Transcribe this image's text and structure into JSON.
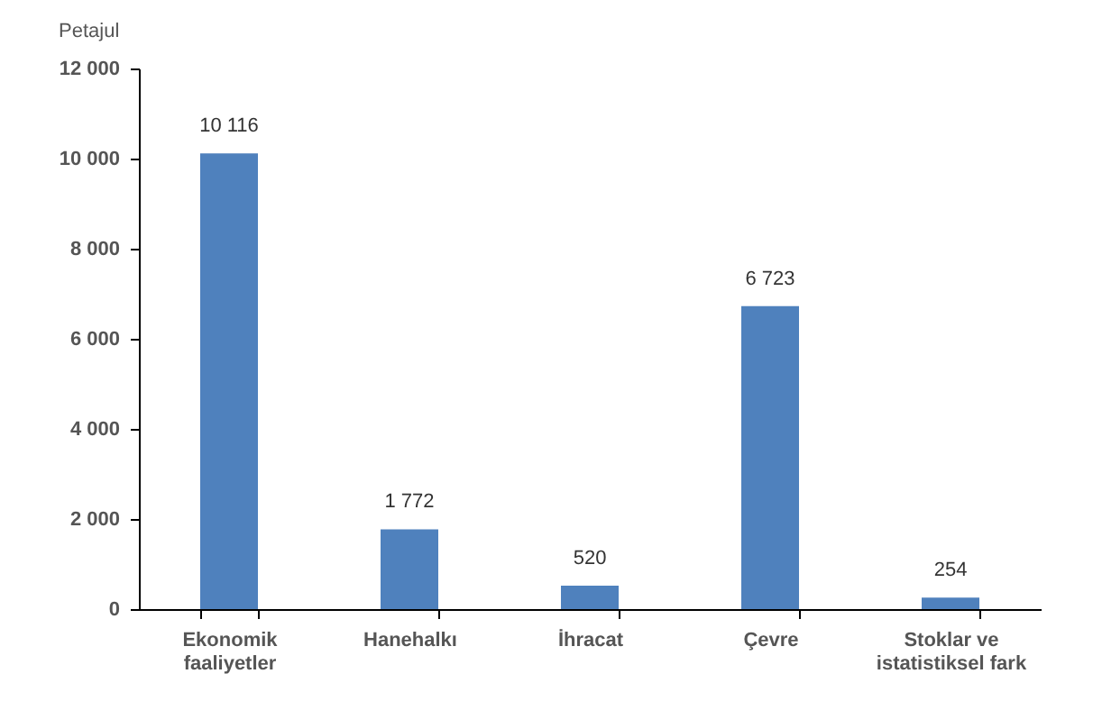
{
  "chart_data": {
    "type": "bar",
    "ylabel": "Petajul",
    "categories": [
      "Ekonomik faaliyetler",
      "Hanehalkı",
      "İhracat",
      "Çevre",
      "Stoklar ve istatistiksel fark"
    ],
    "values": [
      10116,
      1772,
      520,
      6723,
      254
    ],
    "color": "#4f81bd",
    "ylim": [
      0,
      12000
    ],
    "yticks": [
      {
        "value": 0,
        "label": "0"
      },
      {
        "value": 2000,
        "label": "2 000"
      },
      {
        "value": 4000,
        "label": "4 000"
      },
      {
        "value": 6000,
        "label": "6 000"
      },
      {
        "value": 8000,
        "label": "8 000"
      },
      {
        "value": 10000,
        "label": "10 000"
      },
      {
        "value": 12000,
        "label": "12 000"
      }
    ],
    "value_labels": [
      "10 116",
      "1 772",
      "520",
      "6 723",
      "254"
    ],
    "grid": false
  }
}
